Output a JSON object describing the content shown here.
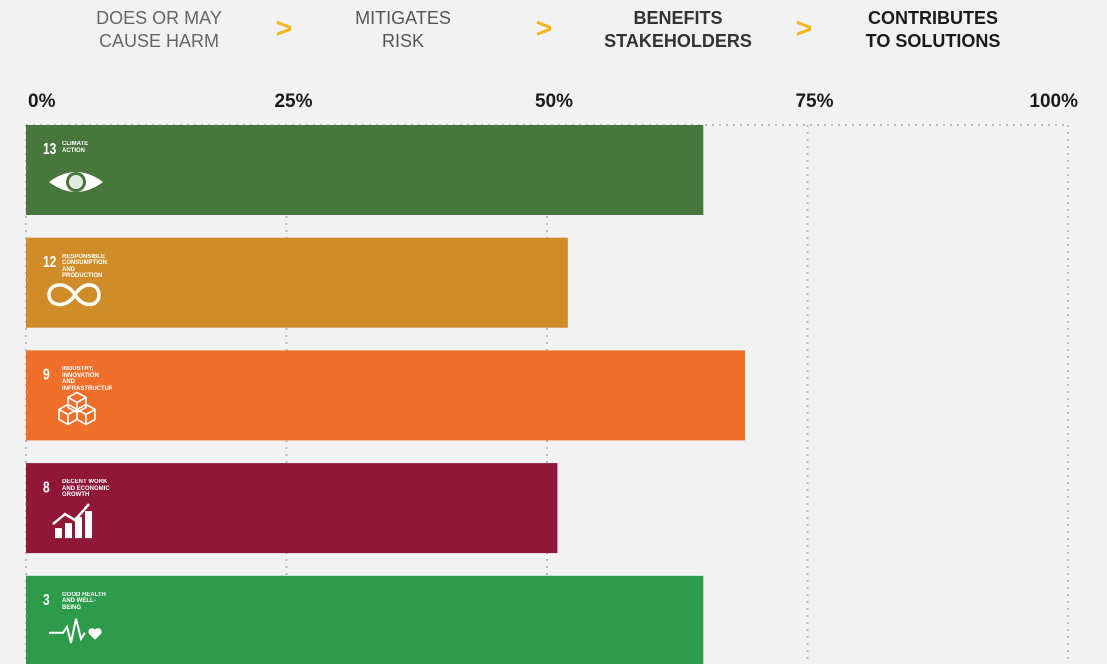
{
  "stages": [
    {
      "lines": [
        "DOES OR MAY",
        "CAUSE HARM"
      ]
    },
    {
      "lines": [
        "MITIGATES",
        "RISK"
      ]
    },
    {
      "lines": [
        "BENEFITS",
        "STAKEHOLDERS"
      ]
    },
    {
      "lines": [
        "CONTRIBUTES",
        "TO SOLUTIONS"
      ]
    }
  ],
  "separator": ">",
  "chart_data": {
    "type": "bar",
    "orientation": "horizontal",
    "categories": [
      "CLIMATE ACTION",
      "RESPONSIBLE CONSUMPTION AND PRODUCTION",
      "INDUSTRY, INNOVATION AND INFRASTRUCTURE",
      "DECENT WORK AND ECONOMIC GROWTH",
      "GOOD HEALTH AND WELL-BEING"
    ],
    "goal_numbers": [
      13,
      12,
      9,
      8,
      3
    ],
    "values": [
      65,
      52,
      69,
      51,
      65
    ],
    "colors": [
      "#48773e",
      "#cf8d2a",
      "#ef702b",
      "#8f1838",
      "#2e9b4a"
    ],
    "xlim": [
      0,
      100
    ],
    "xticks": [
      {
        "value": 0,
        "label": "0%"
      },
      {
        "value": 25,
        "label": "25%"
      },
      {
        "value": 50,
        "label": "50%"
      },
      {
        "value": 75,
        "label": "75%"
      },
      {
        "value": 100,
        "label": "100%"
      }
    ],
    "grid": true
  }
}
